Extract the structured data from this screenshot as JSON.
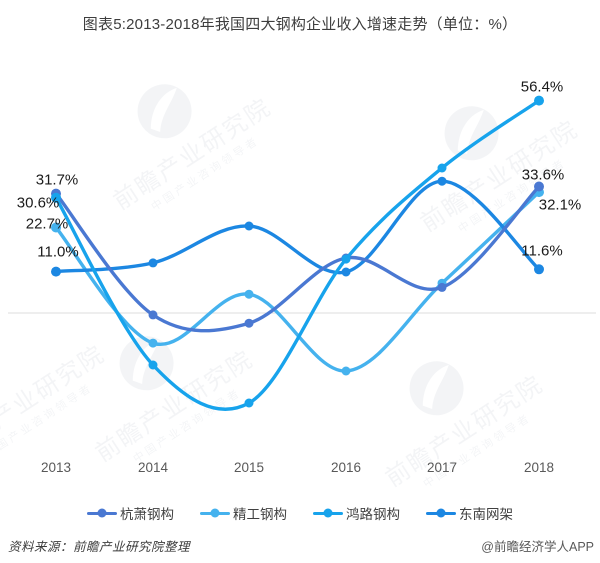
{
  "title": "图表5:2013-2018年我国四大钢构企业收入增速走势（单位：%）",
  "watermark": {
    "brand": "前瞻产业研究院",
    "sub": "中国产业咨询领导者",
    "logo": "qianzhan-bird-roundel"
  },
  "footer": {
    "source": "资料来源：前瞻产业研究院整理",
    "credit": "@前瞻经济学人APP"
  },
  "chart_data": {
    "type": "line",
    "title": "图表5:2013-2018年我国四大钢构企业收入增速走势（单位：%）",
    "unit": "%",
    "x": [
      "2013",
      "2014",
      "2015",
      "2016",
      "2017",
      "2018"
    ],
    "series": [
      {
        "name": "杭萧钢构",
        "color": "#4a78d2",
        "values": [
          31.7,
          -0.5,
          -2.7,
          14.6,
          6.8,
          33.6
        ],
        "labels": {
          "first": "31.7%",
          "last": "33.6%"
        }
      },
      {
        "name": "精工钢构",
        "color": "#45b2ee",
        "values": [
          22.7,
          -8.0,
          5.0,
          -15.4,
          7.9,
          32.1
        ],
        "labels": {
          "first": "22.7%",
          "last": "32.1%"
        }
      },
      {
        "name": "鸿路钢构",
        "color": "#17a3ec",
        "values": [
          30.6,
          -13.8,
          -23.9,
          14.3,
          38.5,
          56.4
        ],
        "labels": {
          "first": "30.6%",
          "last": "56.4%"
        }
      },
      {
        "name": "东南网架",
        "color": "#1c87e2",
        "values": [
          11.0,
          13.3,
          23.1,
          10.9,
          35.0,
          11.6
        ],
        "labels": {
          "first": "11.0%",
          "last": "11.6%"
        }
      }
    ],
    "labeled_points": "only first (2013) and last (2018) values carry data labels",
    "ylim": [
      -30,
      62
    ],
    "y_axis_visible": false,
    "grid": "single horizontal zero line",
    "legend_position": "bottom",
    "legend": [
      "杭萧钢构",
      "精工钢构",
      "鸿路钢构",
      "东南网架"
    ]
  }
}
